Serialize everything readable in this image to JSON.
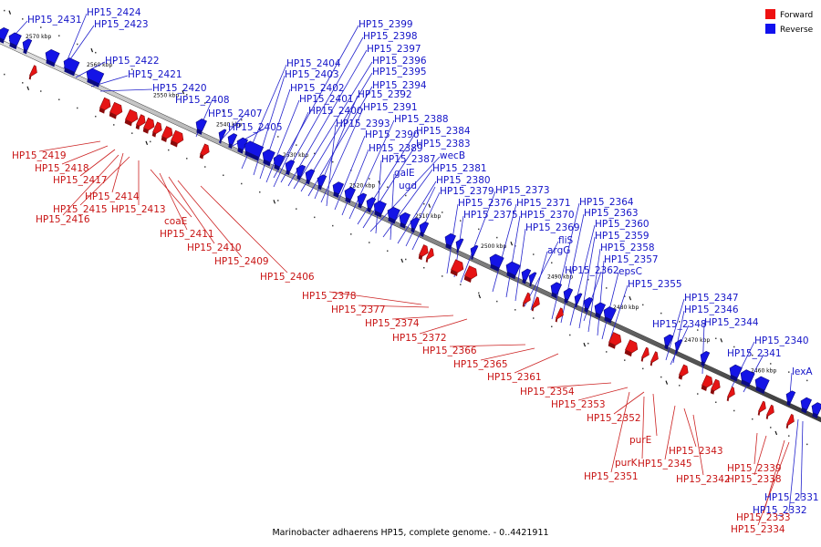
{
  "caption": "Marinobacter adhaerens HP15, complete genome. - 0..4421911",
  "legend": [
    {
      "label": "Forward",
      "color": "#ee1111"
    },
    {
      "label": "Reverse",
      "color": "#1111ee"
    }
  ],
  "kbp_ticks": [
    "2570 kbp",
    "2560 kbp",
    "2550 kbp",
    "2540 kbp",
    "2530 kbp",
    "2520 kbp",
    "2510 kbp",
    "2500 kbp",
    "2490 kbp",
    "2480 kbp",
    "2470 kbp",
    "2460 kbp"
  ],
  "reverse_genes": [
    "HP15_2431",
    "HP15_2424",
    "HP15_2423",
    "HP15_2422",
    "HP15_2421",
    "HP15_2420",
    "HP15_2408",
    "HP15_2407",
    "HP15_2405",
    "HP15_2404",
    "HP15_2403",
    "HP15_2402",
    "HP15_2401",
    "HP15_2400",
    "HP15_2399",
    "HP15_2398",
    "HP15_2397",
    "HP15_2396",
    "HP15_2395",
    "HP15_2394",
    "HP15_2392",
    "HP15_2391",
    "HP15_2393",
    "HP15_2390",
    "HP15_2389",
    "HP15_2388",
    "HP15_2384",
    "HP15_2383",
    "wecB",
    "HP15_2387",
    "HP15_2381",
    "galE",
    "HP15_2380",
    "ugd",
    "HP15_2379",
    "HP15_2376",
    "HP15_2375",
    "HP15_2373",
    "HP15_2371",
    "HP15_2370",
    "HP15_2369",
    "fliS",
    "argG",
    "HP15_2364",
    "HP15_2363",
    "HP15_2360",
    "HP15_2359",
    "HP15_2358",
    "HP15_2357",
    "HP15_2362",
    "epsC",
    "HP15_2355",
    "HP15_2347",
    "HP15_2346",
    "HP15_2348",
    "HP15_2344",
    "HP15_2340",
    "HP15_2341",
    "lexA",
    "HP15_2331",
    "HP15_2332"
  ],
  "forward_genes": [
    "HP15_2419",
    "HP15_2418",
    "HP15_2417",
    "HP15_2414",
    "HP15_2415",
    "HP15_2413",
    "HP15_2416",
    "coaE",
    "HP15_2411",
    "HP15_2410",
    "HP15_2409",
    "HP15_2406",
    "HP15_2378",
    "HP15_2377",
    "HP15_2374",
    "HP15_2372",
    "HP15_2366",
    "HP15_2365",
    "HP15_2361",
    "HP15_2354",
    "HP15_2353",
    "HP15_2352",
    "purE",
    "purK",
    "HP15_2345",
    "HP15_2343",
    "HP15_2351",
    "HP15_2342",
    "HP15_2339",
    "HP15_2338",
    "HP15_2333",
    "HP15_2334"
  ]
}
